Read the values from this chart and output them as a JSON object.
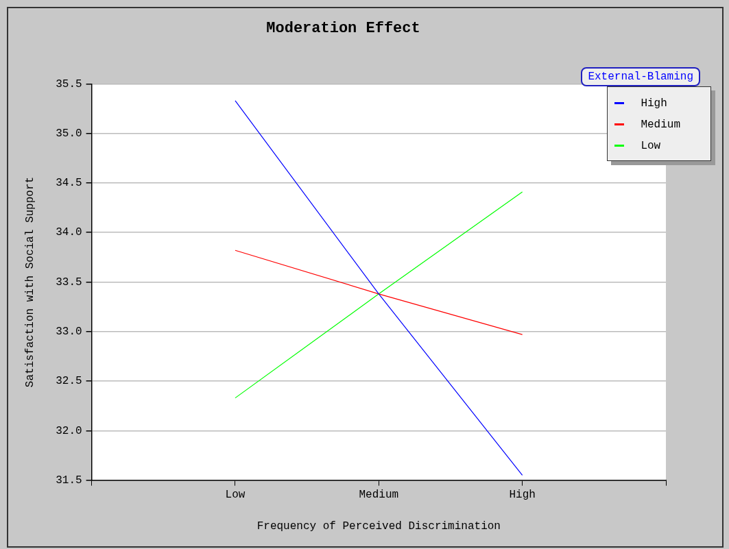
{
  "chart_data": {
    "type": "line",
    "title": "Moderation Effect",
    "xlabel": "Frequency of Perceived Discrimination",
    "ylabel": "Satisfaction with Social Support",
    "categories": [
      null,
      "Low",
      "Medium",
      "High",
      null
    ],
    "series": [
      {
        "name": "High",
        "color": "#0000ff",
        "values": [
          null,
          35.33,
          33.38,
          31.55,
          null
        ]
      },
      {
        "name": "Medium",
        "color": "#ff0000",
        "values": [
          null,
          33.82,
          33.38,
          32.97,
          null
        ]
      },
      {
        "name": "Low",
        "color": "#00ff00",
        "values": [
          null,
          32.33,
          33.38,
          34.41,
          null
        ]
      }
    ],
    "ylim": [
      31.5,
      35.5
    ],
    "yticks": [
      {
        "value": 31.5,
        "label": "31.5"
      },
      {
        "value": 32,
        "label": "32.0"
      },
      {
        "value": 32.5,
        "label": "32.5"
      },
      {
        "value": 33,
        "label": "33.0"
      },
      {
        "value": 33.5,
        "label": "33.5"
      },
      {
        "value": 34,
        "label": "34.0"
      },
      {
        "value": 34.5,
        "label": "34.5"
      },
      {
        "value": 35,
        "label": "35.0"
      },
      {
        "value": 35.5,
        "label": "35.5"
      }
    ],
    "grid": "y",
    "legend": "top right",
    "legend_title": "External-Blaming",
    "marker": "none",
    "line_style": "solid"
  }
}
